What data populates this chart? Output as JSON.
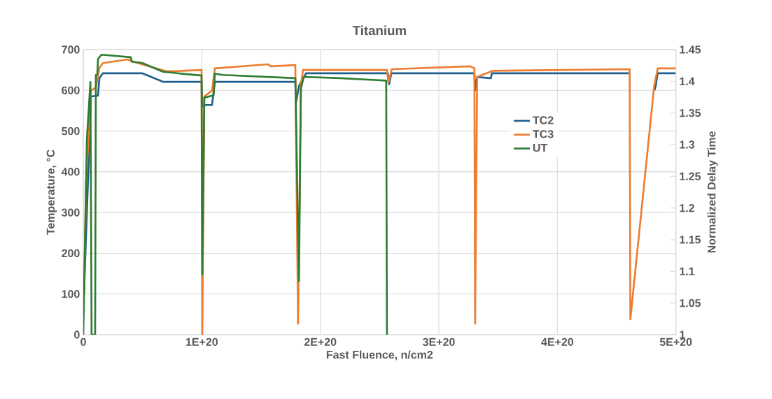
{
  "chart_data": {
    "type": "line",
    "title": "Titanium",
    "xlabel": "Fast Fluence, n/cm2",
    "ylabel": "Temperature, °C",
    "y2label": "Normalized Delay Time",
    "xlim": [
      0,
      5e+20
    ],
    "xticks": [
      0,
      {
        "value": 1e+20,
        "label": "1E+20"
      },
      {
        "value": 2e+20,
        "label": "2E+20"
      },
      {
        "value": 3e+20,
        "label": "3E+20"
      },
      {
        "value": 4e+20,
        "label": "4E+20"
      },
      {
        "value": 5e+20,
        "label": "5E+20"
      }
    ],
    "ylim": [
      0,
      700
    ],
    "yticks": [
      0,
      100,
      200,
      300,
      400,
      500,
      600,
      700
    ],
    "y2lim": [
      1,
      1.45
    ],
    "y2ticks": [
      1,
      1.05,
      1.1,
      1.15,
      1.2,
      1.25,
      1.3,
      1.35,
      1.4,
      1.45
    ],
    "grid": true,
    "legend": "right",
    "line_style": "solid",
    "series": [
      {
        "name": "TC2",
        "color": "#1f5f8b",
        "x": [
          6e+17,
          6.5e+18,
          1.24e+19,
          1.36e+19,
          1.65e+19,
          4.96e+19,
          6.73e+19,
          9.98e+19,
          1.004e+20,
          1.021e+20,
          1.086e+20,
          1.11e+20,
          1.789e+20,
          1.795e+20,
          1.82e+20,
          1.88e+20,
          2.57e+20,
          2.58e+20,
          2.6e+20,
          3.3e+20,
          3.306e+20,
          3.323e+20,
          3.43e+20,
          3.44e+20,
          3.447e+20,
          4.61e+20,
          4.616e+20,
          4.82e+20,
          4.83e+20,
          4.846e+20,
          5e+20
        ],
        "values": [
          101,
          585,
          587,
          630,
          642,
          642,
          621,
          621,
          560,
          564,
          564,
          621,
          621,
          570,
          611,
          642,
          642,
          615,
          642,
          642,
          600,
          633,
          630,
          630,
          642,
          642,
          null,
          600,
          611,
          642,
          642
        ]
      },
      {
        "name": "TC3",
        "color": "#ed7d31",
        "x": [
          6e+17,
          2.4e+18,
          6.5e+18,
          1.06e+19,
          1.36e+19,
          1.65e+19,
          3.78e+19,
          4.01e+19,
          4.96e+19,
          6.97e+19,
          7.73e+19,
          9.98e+19,
          1.004e+20,
          1.021e+20,
          1.086e+20,
          1.11e+20,
          1.558e+20,
          1.582e+20,
          1.789e+20,
          1.812e+20,
          1.836e+20,
          1.854e+20,
          2.562e+20,
          2.574e+20,
          2.603e+20,
          3.264e+20,
          3.3e+20,
          3.306e+20,
          3.323e+20,
          3.43e+20,
          3.447e+20,
          4.61e+20,
          4.616e+20,
          4.817e+20,
          4.847e+20,
          5e+20
        ],
        "values": [
          101,
          375,
          599,
          607,
          655,
          667,
          676,
          672,
          664,
          647,
          647,
          650,
          0,
          585,
          599,
          654,
          664,
          659,
          662,
          27,
          612,
          650,
          650,
          619,
          652,
          659,
          654,
          27,
          633,
          645,
          648,
          652,
          38,
          611,
          654,
          654
        ]
      },
      {
        "name": "UT",
        "color": "#2e7d32",
        "axis": "y2",
        "x": [
          0,
          3e+18,
          6e+18,
          7e+18,
          1e+19,
          1.06e+19,
          1.18e+19,
          1.24e+19,
          1.53e+19,
          4e+19,
          4.1e+19,
          4.96e+19,
          6.73e+19,
          9.98e+19,
          1.004e+20,
          1.021e+20,
          1.1e+20,
          1.11e+20,
          1.18e+20,
          1.789e+20,
          1.82e+20,
          1.836e+20,
          1.86e+20,
          2.17e+20,
          2.556e+20,
          2.562e+20
        ],
        "values": [
          1.0,
          1.308,
          1.399,
          1.0,
          1.0,
          1.41,
          1.41,
          1.435,
          1.442,
          1.438,
          1.431,
          1.429,
          1.415,
          1.409,
          1.095,
          1.374,
          1.378,
          1.412,
          1.41,
          1.405,
          1.085,
          1.388,
          1.407,
          1.405,
          1.401,
          1.0
        ]
      }
    ]
  }
}
